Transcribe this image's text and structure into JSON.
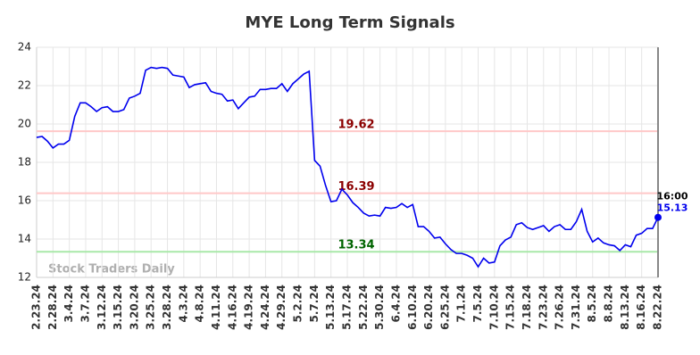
{
  "chart_data": {
    "type": "line",
    "title": "MYE Long Term Signals",
    "watermark": "Stock Traders Daily",
    "end_time": "16:00",
    "color": "#0000ee",
    "ylim": [
      12,
      24
    ],
    "yticks": [
      12,
      14,
      16,
      18,
      20,
      22,
      24
    ],
    "grid": true,
    "hlines": [
      {
        "value": 19.62,
        "color": "#ffc8c8",
        "label_color": "#8b0000"
      },
      {
        "value": 16.39,
        "color": "#ffc8c8",
        "label_color": "#8b0000"
      },
      {
        "value": 13.34,
        "color": "#a8e8a8",
        "label_color": "#006400"
      }
    ],
    "categories": [
      "2.23.24",
      null,
      null,
      "2.28.24",
      null,
      null,
      "3.4.24",
      null,
      null,
      "3.7.24",
      null,
      null,
      "3.12.24",
      null,
      null,
      "3.15.24",
      null,
      null,
      "3.20.24",
      null,
      null,
      "3.25.24",
      null,
      null,
      "3.28.24",
      null,
      null,
      "4.3.24",
      null,
      null,
      "4.8.24",
      null,
      null,
      "4.11.24",
      null,
      null,
      "4.16.24",
      null,
      null,
      "4.19.24",
      null,
      null,
      "4.24.24",
      null,
      null,
      "4.29.24",
      null,
      null,
      "5.2.24",
      null,
      null,
      "5.7.24",
      null,
      null,
      "5.13.24",
      null,
      null,
      "5.17.24",
      null,
      null,
      "5.22.24",
      null,
      null,
      "5.30.24",
      null,
      null,
      "6.4.24",
      null,
      null,
      "6.10.24",
      null,
      null,
      "6.20.24",
      null,
      null,
      "6.25.24",
      null,
      null,
      "7.1.24",
      null,
      null,
      "7.5.24",
      null,
      null,
      "7.10.24",
      null,
      null,
      "7.15.24",
      null,
      null,
      "7.18.24",
      null,
      null,
      "7.23.24",
      null,
      null,
      "7.26.24",
      null,
      null,
      "7.31.24",
      null,
      null,
      "8.5.24",
      null,
      null,
      "8.8.24",
      null,
      null,
      "8.13.24",
      null,
      null,
      "8.16.24",
      null,
      null,
      "8.22.24"
    ],
    "values": [
      19.3,
      19.35,
      19.1,
      18.75,
      18.95,
      18.95,
      19.15,
      20.4,
      21.1,
      21.1,
      20.9,
      20.65,
      20.85,
      20.9,
      20.65,
      20.65,
      20.75,
      21.35,
      21.45,
      21.6,
      22.8,
      22.95,
      22.9,
      22.95,
      22.9,
      22.55,
      22.5,
      22.45,
      21.9,
      22.05,
      22.1,
      22.15,
      21.7,
      21.6,
      21.55,
      21.2,
      21.25,
      20.8,
      21.1,
      21.4,
      21.45,
      21.8,
      21.8,
      21.85,
      21.85,
      22.1,
      21.7,
      22.1,
      22.35,
      22.6,
      22.75,
      18.1,
      17.8,
      16.8,
      15.95,
      16.0,
      16.6,
      16.3,
      15.9,
      15.65,
      15.35,
      15.2,
      15.25,
      15.2,
      15.65,
      15.6,
      15.65,
      15.85,
      15.65,
      15.8,
      14.65,
      14.65,
      14.4,
      14.05,
      14.1,
      13.75,
      13.45,
      13.25,
      13.25,
      13.15,
      13.0,
      12.55,
      13.0,
      12.75,
      12.8,
      13.65,
      13.95,
      14.1,
      14.75,
      14.85,
      14.6,
      14.5,
      14.6,
      14.7,
      14.4,
      14.65,
      14.75,
      14.5,
      14.5,
      14.9,
      15.55,
      14.4,
      13.85,
      14.05,
      13.8,
      13.7,
      13.65,
      13.4,
      13.7,
      13.6,
      14.2,
      14.3,
      14.55,
      14.55,
      15.13
    ]
  }
}
